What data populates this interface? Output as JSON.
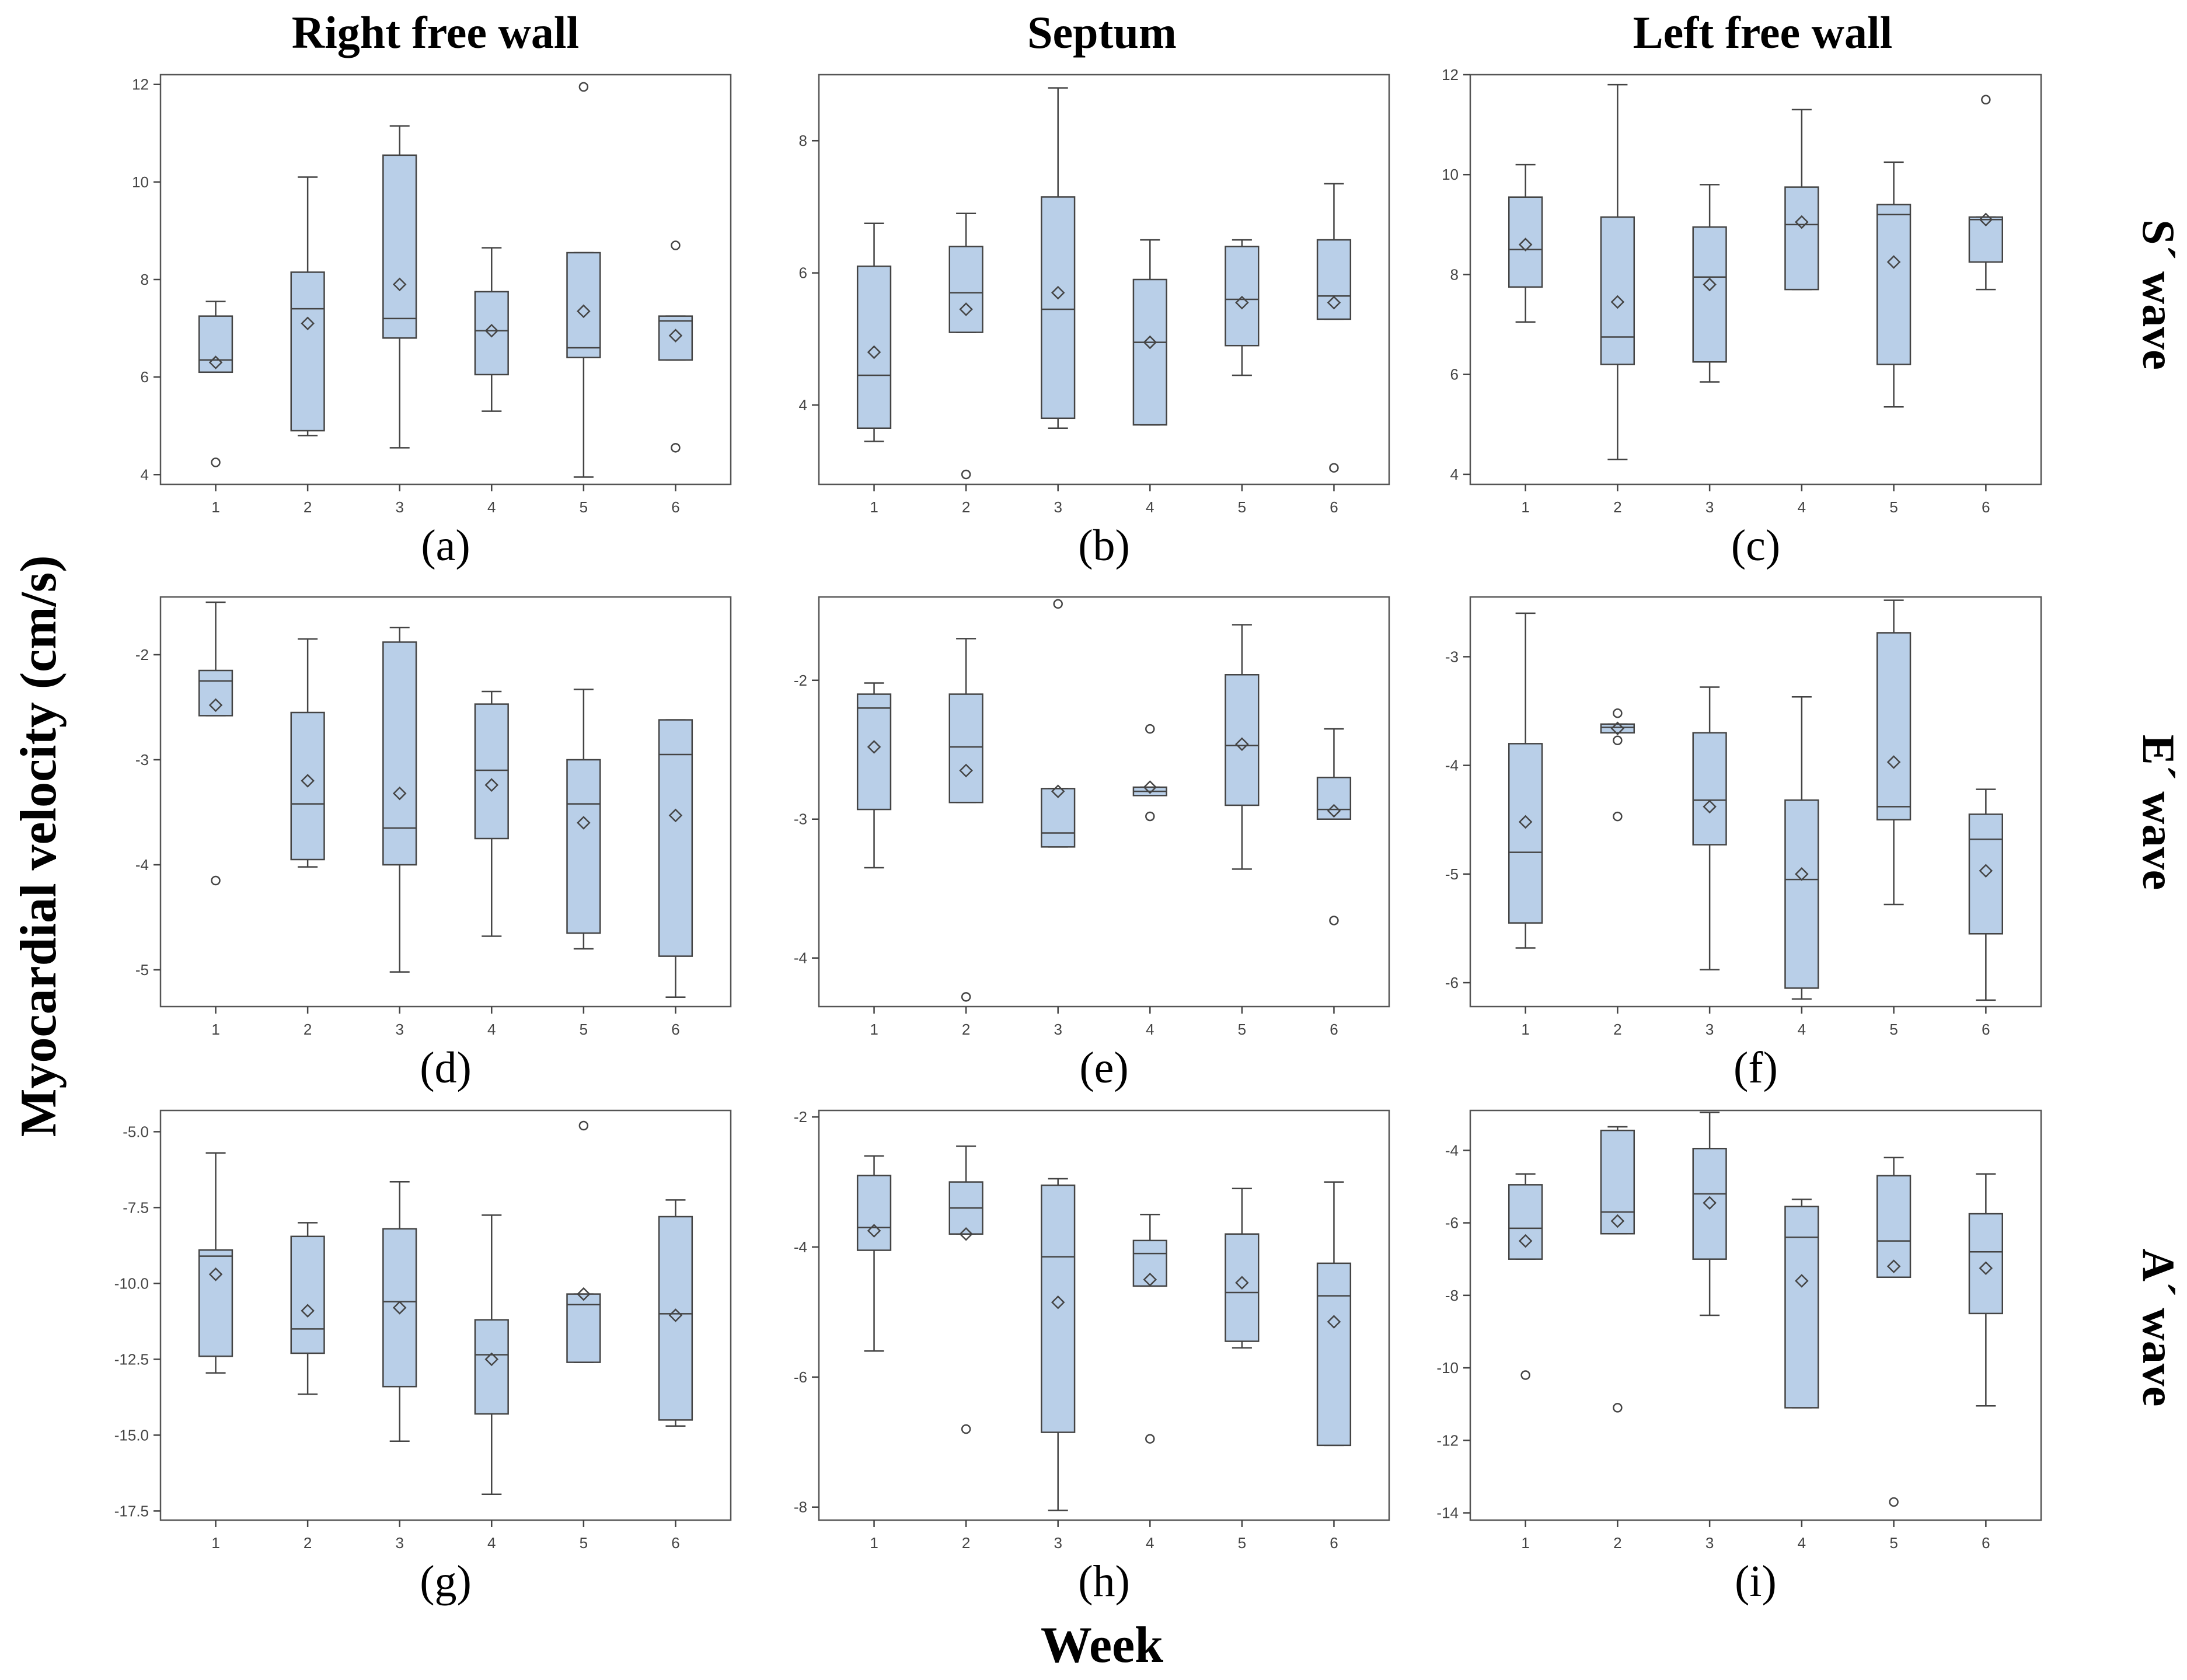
{
  "figure": {
    "column_titles": [
      "Right free wall",
      "Septum",
      "Left free wall"
    ],
    "row_titles": [
      "S´ wave",
      "E´ wave",
      "A´ wave"
    ],
    "y_axis_title": "Myocardial velocity (cm/s)",
    "x_axis_title": "Week",
    "box_color": "#b9cfe8"
  },
  "chart_data": [
    {
      "panel": "(a)",
      "type": "box",
      "categories": [
        "1",
        "2",
        "3",
        "4",
        "5",
        "6"
      ],
      "ylim": [
        3.8,
        12.2
      ],
      "yticks": [
        4,
        6,
        8,
        10,
        12
      ],
      "ytick_labels": [
        "4",
        "6",
        "8",
        "10",
        "12"
      ],
      "boxes": [
        {
          "q1": 6.1,
          "median": 6.35,
          "q3": 7.25,
          "whisker_low": 6.1,
          "whisker_high": 7.55,
          "mean": 6.3,
          "outliers": [
            4.25
          ]
        },
        {
          "q1": 4.9,
          "median": 7.4,
          "q3": 8.15,
          "whisker_low": 4.8,
          "whisker_high": 10.1,
          "mean": 7.1,
          "outliers": []
        },
        {
          "q1": 6.8,
          "median": 7.2,
          "q3": 10.55,
          "whisker_low": 4.55,
          "whisker_high": 11.15,
          "mean": 7.9,
          "outliers": []
        },
        {
          "q1": 6.05,
          "median": 6.95,
          "q3": 7.75,
          "whisker_low": 5.3,
          "whisker_high": 8.65,
          "mean": 6.95,
          "outliers": []
        },
        {
          "q1": 6.4,
          "median": 6.6,
          "q3": 8.55,
          "whisker_low": 3.95,
          "whisker_high": 8.55,
          "mean": 7.35,
          "outliers": [
            11.95
          ]
        },
        {
          "q1": 6.35,
          "median": 7.15,
          "q3": 7.25,
          "whisker_low": 6.35,
          "whisker_high": 7.25,
          "mean": 6.85,
          "outliers": [
            8.7,
            4.55
          ]
        }
      ]
    },
    {
      "panel": "(b)",
      "type": "box",
      "categories": [
        "1",
        "2",
        "3",
        "4",
        "5",
        "6"
      ],
      "ylim": [
        2.8,
        9.0
      ],
      "yticks": [
        4,
        6,
        8
      ],
      "ytick_labels": [
        "4",
        "6",
        "8"
      ],
      "boxes": [
        {
          "q1": 3.65,
          "median": 4.45,
          "q3": 6.1,
          "whisker_low": 3.45,
          "whisker_high": 6.75,
          "mean": 4.8,
          "outliers": []
        },
        {
          "q1": 5.1,
          "median": 5.7,
          "q3": 6.4,
          "whisker_low": 5.1,
          "whisker_high": 6.9,
          "mean": 5.45,
          "outliers": [
            2.95
          ]
        },
        {
          "q1": 3.8,
          "median": 5.45,
          "q3": 7.15,
          "whisker_low": 3.65,
          "whisker_high": 8.8,
          "mean": 5.7,
          "outliers": []
        },
        {
          "q1": 3.7,
          "median": 4.95,
          "q3": 5.9,
          "whisker_low": 3.7,
          "whisker_high": 6.5,
          "mean": 4.95,
          "outliers": []
        },
        {
          "q1": 4.9,
          "median": 5.6,
          "q3": 6.4,
          "whisker_low": 4.45,
          "whisker_high": 6.5,
          "mean": 5.55,
          "outliers": []
        },
        {
          "q1": 5.3,
          "median": 5.65,
          "q3": 6.5,
          "whisker_low": 5.3,
          "whisker_high": 7.35,
          "mean": 5.55,
          "outliers": [
            3.05
          ]
        }
      ]
    },
    {
      "panel": "(c)",
      "type": "box",
      "categories": [
        "1",
        "2",
        "3",
        "4",
        "5",
        "6"
      ],
      "ylim": [
        3.8,
        12.0
      ],
      "yticks": [
        4,
        6,
        8,
        10,
        12
      ],
      "ytick_labels": [
        "4",
        "6",
        "8",
        "10",
        "12"
      ],
      "boxes": [
        {
          "q1": 7.75,
          "median": 8.5,
          "q3": 9.55,
          "whisker_low": 7.05,
          "whisker_high": 10.2,
          "mean": 8.6,
          "outliers": []
        },
        {
          "q1": 6.2,
          "median": 6.75,
          "q3": 9.15,
          "whisker_low": 4.3,
          "whisker_high": 11.8,
          "mean": 7.45,
          "outliers": []
        },
        {
          "q1": 6.25,
          "median": 7.95,
          "q3": 8.95,
          "whisker_low": 5.85,
          "whisker_high": 9.8,
          "mean": 7.8,
          "outliers": []
        },
        {
          "q1": 7.7,
          "median": 9.0,
          "q3": 9.75,
          "whisker_low": 7.7,
          "whisker_high": 11.3,
          "mean": 9.05,
          "outliers": []
        },
        {
          "q1": 6.2,
          "median": 9.2,
          "q3": 9.4,
          "whisker_low": 5.35,
          "whisker_high": 10.25,
          "mean": 8.25,
          "outliers": []
        },
        {
          "q1": 8.25,
          "median": 9.1,
          "q3": 9.15,
          "whisker_low": 7.7,
          "whisker_high": 9.15,
          "mean": 9.1,
          "outliers": [
            11.5
          ]
        }
      ]
    },
    {
      "panel": "(d)",
      "type": "box",
      "categories": [
        "1",
        "2",
        "3",
        "4",
        "5",
        "6"
      ],
      "ylim": [
        -5.35,
        -1.45
      ],
      "yticks": [
        -5,
        -4,
        -3,
        -2
      ],
      "ytick_labels": [
        "-5",
        "-4",
        "-3",
        "-2"
      ],
      "boxes": [
        {
          "q1": -2.58,
          "median": -2.25,
          "q3": -2.15,
          "whisker_low": -2.58,
          "whisker_high": -1.5,
          "mean": -2.48,
          "outliers": [
            -4.15
          ]
        },
        {
          "q1": -3.95,
          "median": -3.42,
          "q3": -2.55,
          "whisker_low": -4.02,
          "whisker_high": -1.85,
          "mean": -3.2,
          "outliers": []
        },
        {
          "q1": -4.0,
          "median": -3.65,
          "q3": -1.88,
          "whisker_low": -5.02,
          "whisker_high": -1.74,
          "mean": -3.32,
          "outliers": []
        },
        {
          "q1": -3.75,
          "median": -3.1,
          "q3": -2.47,
          "whisker_low": -4.68,
          "whisker_high": -2.35,
          "mean": -3.24,
          "outliers": []
        },
        {
          "q1": -4.65,
          "median": -3.42,
          "q3": -3.0,
          "whisker_low": -4.8,
          "whisker_high": -2.33,
          "mean": -3.6,
          "outliers": []
        },
        {
          "q1": -4.87,
          "median": -2.95,
          "q3": -2.62,
          "whisker_low": -5.26,
          "whisker_high": -2.62,
          "mean": -3.53,
          "outliers": []
        }
      ]
    },
    {
      "panel": "(e)",
      "type": "box",
      "categories": [
        "1",
        "2",
        "3",
        "4",
        "5",
        "6"
      ],
      "ylim": [
        -4.35,
        -1.4
      ],
      "yticks": [
        -4,
        -3,
        -2
      ],
      "ytick_labels": [
        "-4",
        "-3",
        "-2"
      ],
      "boxes": [
        {
          "q1": -2.93,
          "median": -2.2,
          "q3": -2.1,
          "whisker_low": -3.35,
          "whisker_high": -2.02,
          "mean": -2.48,
          "outliers": []
        },
        {
          "q1": -2.88,
          "median": -2.48,
          "q3": -2.1,
          "whisker_low": -2.88,
          "whisker_high": -1.7,
          "mean": -2.65,
          "outliers": [
            -4.28
          ]
        },
        {
          "q1": -3.2,
          "median": -3.1,
          "q3": -2.78,
          "whisker_low": -3.2,
          "whisker_high": -2.78,
          "mean": -2.8,
          "outliers": [
            -1.45
          ]
        },
        {
          "q1": -2.83,
          "median": -2.8,
          "q3": -2.77,
          "whisker_low": -2.83,
          "whisker_high": -2.77,
          "mean": -2.77,
          "outliers": [
            -2.35,
            -2.98
          ]
        },
        {
          "q1": -2.9,
          "median": -2.47,
          "q3": -1.96,
          "whisker_low": -3.36,
          "whisker_high": -1.6,
          "mean": -2.46,
          "outliers": []
        },
        {
          "q1": -3.0,
          "median": -2.93,
          "q3": -2.7,
          "whisker_low": -3.0,
          "whisker_high": -2.35,
          "mean": -2.94,
          "outliers": [
            -3.73
          ]
        }
      ]
    },
    {
      "panel": "(f)",
      "type": "box",
      "categories": [
        "1",
        "2",
        "3",
        "4",
        "5",
        "6"
      ],
      "ylim": [
        -6.22,
        -2.45
      ],
      "yticks": [
        -6,
        -5,
        -4,
        -3
      ],
      "ytick_labels": [
        "-6",
        "-5",
        "-4",
        "-3"
      ],
      "boxes": [
        {
          "q1": -5.45,
          "median": -4.8,
          "q3": -3.8,
          "whisker_low": -5.68,
          "whisker_high": -2.6,
          "mean": -4.52,
          "outliers": []
        },
        {
          "q1": -3.7,
          "median": -3.65,
          "q3": -3.62,
          "whisker_low": -3.7,
          "whisker_high": -3.62,
          "mean": -3.66,
          "outliers": [
            -3.52,
            -3.77,
            -4.47
          ]
        },
        {
          "q1": -4.73,
          "median": -4.32,
          "q3": -3.7,
          "whisker_low": -5.88,
          "whisker_high": -3.28,
          "mean": -4.38,
          "outliers": []
        },
        {
          "q1": -6.05,
          "median": -5.05,
          "q3": -4.32,
          "whisker_low": -6.15,
          "whisker_high": -3.37,
          "mean": -5.0,
          "outliers": []
        },
        {
          "q1": -4.5,
          "median": -4.38,
          "q3": -2.78,
          "whisker_low": -5.28,
          "whisker_high": -2.48,
          "mean": -3.97,
          "outliers": []
        },
        {
          "q1": -5.55,
          "median": -4.68,
          "q3": -4.45,
          "whisker_low": -6.16,
          "whisker_high": -4.22,
          "mean": -4.97,
          "outliers": []
        }
      ]
    },
    {
      "panel": "(g)",
      "type": "box",
      "categories": [
        "1",
        "2",
        "3",
        "4",
        "5",
        "6"
      ],
      "ylim": [
        -17.8,
        -4.3
      ],
      "yticks": [
        -17.5,
        -15,
        -12.5,
        -10,
        -7.5,
        -5
      ],
      "ytick_labels": [
        "-17.5",
        "-15.0",
        "-12.5",
        "-10.0",
        "-7.5",
        "-5.0"
      ],
      "boxes": [
        {
          "q1": -12.4,
          "median": -9.1,
          "q3": -8.9,
          "whisker_low": -12.95,
          "whisker_high": -5.7,
          "mean": -9.7,
          "outliers": []
        },
        {
          "q1": -12.3,
          "median": -11.5,
          "q3": -8.45,
          "whisker_low": -13.65,
          "whisker_high": -8.0,
          "mean": -10.9,
          "outliers": []
        },
        {
          "q1": -13.4,
          "median": -10.6,
          "q3": -8.2,
          "whisker_low": -15.2,
          "whisker_high": -6.65,
          "mean": -10.8,
          "outliers": []
        },
        {
          "q1": -14.3,
          "median": -12.35,
          "q3": -11.2,
          "whisker_low": -16.95,
          "whisker_high": -7.75,
          "mean": -12.5,
          "outliers": []
        },
        {
          "q1": -12.6,
          "median": -10.7,
          "q3": -10.35,
          "whisker_low": -12.6,
          "whisker_high": -10.35,
          "mean": -10.35,
          "outliers": [
            -4.8
          ]
        },
        {
          "q1": -14.5,
          "median": -11.0,
          "q3": -7.8,
          "whisker_low": -14.7,
          "whisker_high": -7.25,
          "mean": -11.05,
          "outliers": []
        }
      ]
    },
    {
      "panel": "(h)",
      "type": "box",
      "categories": [
        "1",
        "2",
        "3",
        "4",
        "5",
        "6"
      ],
      "ylim": [
        -8.2,
        -1.9
      ],
      "yticks": [
        -8,
        -6,
        -4,
        -2
      ],
      "ytick_labels": [
        "-8",
        "-6",
        "-4",
        "-2"
      ],
      "boxes": [
        {
          "q1": -4.05,
          "median": -3.7,
          "q3": -2.9,
          "whisker_low": -5.6,
          "whisker_high": -2.6,
          "mean": -3.75,
          "outliers": []
        },
        {
          "q1": -3.8,
          "median": -3.4,
          "q3": -3.0,
          "whisker_low": -3.8,
          "whisker_high": -2.45,
          "mean": -3.8,
          "outliers": [
            -6.8
          ]
        },
        {
          "q1": -6.85,
          "median": -4.15,
          "q3": -3.05,
          "whisker_low": -8.05,
          "whisker_high": -2.95,
          "mean": -4.85,
          "outliers": []
        },
        {
          "q1": -4.6,
          "median": -4.1,
          "q3": -3.9,
          "whisker_low": -4.6,
          "whisker_high": -3.5,
          "mean": -4.5,
          "outliers": [
            -6.95
          ]
        },
        {
          "q1": -5.45,
          "median": -4.7,
          "q3": -3.8,
          "whisker_low": -5.55,
          "whisker_high": -3.1,
          "mean": -4.55,
          "outliers": []
        },
        {
          "q1": -7.05,
          "median": -4.75,
          "q3": -4.25,
          "whisker_low": -7.05,
          "whisker_high": -3.0,
          "mean": -5.15,
          "outliers": []
        }
      ]
    },
    {
      "panel": "(i)",
      "type": "box",
      "categories": [
        "1",
        "2",
        "3",
        "4",
        "5",
        "6"
      ],
      "ylim": [
        -14.2,
        -2.9
      ],
      "yticks": [
        -14,
        -12,
        -10,
        -8,
        -6,
        -4
      ],
      "ytick_labels": [
        "-14",
        "-12",
        "-10",
        "-8",
        "-6",
        "-4"
      ],
      "boxes": [
        {
          "q1": -7.0,
          "median": -6.15,
          "q3": -4.95,
          "whisker_low": -7.0,
          "whisker_high": -4.65,
          "mean": -6.5,
          "outliers": [
            -10.2
          ]
        },
        {
          "q1": -6.3,
          "median": -5.7,
          "q3": -3.45,
          "whisker_low": -6.3,
          "whisker_high": -3.35,
          "mean": -5.95,
          "outliers": [
            -11.1
          ]
        },
        {
          "q1": -7.0,
          "median": -5.2,
          "q3": -3.95,
          "whisker_low": -8.55,
          "whisker_high": -2.95,
          "mean": -5.45,
          "outliers": []
        },
        {
          "q1": -11.1,
          "median": -6.4,
          "q3": -5.55,
          "whisker_low": -11.1,
          "whisker_high": -5.35,
          "mean": -7.6,
          "outliers": []
        },
        {
          "q1": -7.5,
          "median": -6.5,
          "q3": -4.7,
          "whisker_low": -7.5,
          "whisker_high": -4.2,
          "mean": -7.2,
          "outliers": [
            -13.7
          ]
        },
        {
          "q1": -8.5,
          "median": -6.8,
          "q3": -5.75,
          "whisker_low": -11.05,
          "whisker_high": -4.65,
          "mean": -7.25,
          "outliers": []
        }
      ]
    }
  ]
}
